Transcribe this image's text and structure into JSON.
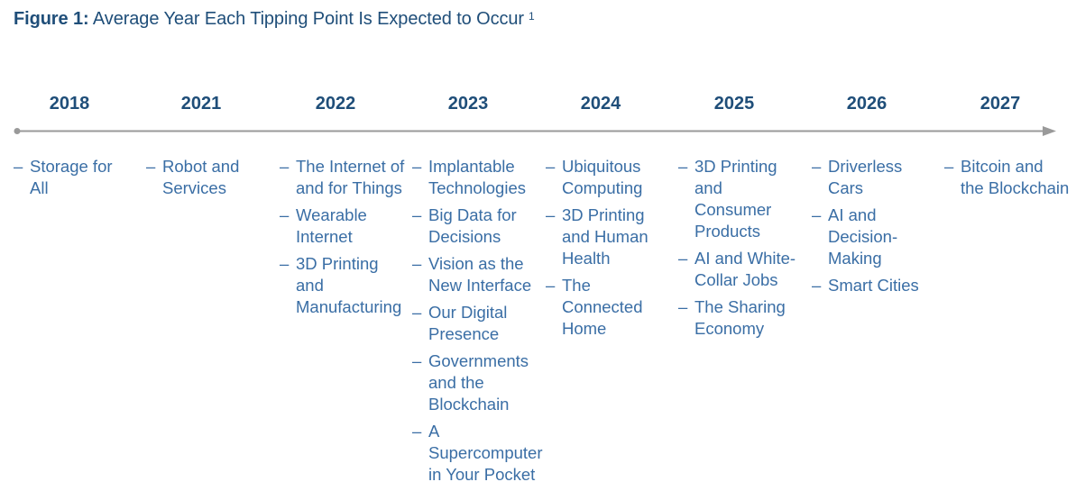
{
  "title": {
    "label": "Figure 1:",
    "text": "Average Year Each Tipping Point Is Expected to Occur",
    "footnote": "1"
  },
  "colors": {
    "title": "#1f4e79",
    "items": "#3a6ea5",
    "axis": "#9a9a9a"
  },
  "dash": "–",
  "columns": [
    {
      "year": "2018",
      "items": [
        "Storage for All"
      ]
    },
    {
      "year": "2021",
      "items": [
        "Robot and Services"
      ]
    },
    {
      "year": "2022",
      "items": [
        "The Internet of and for Things",
        "Wearable Internet",
        "3D Printing and Manufacturing"
      ]
    },
    {
      "year": "2023",
      "items": [
        "Implantable Technologies",
        "Big Data for Decisions",
        "Vision as the New Interface",
        "Our Digital Presence",
        "Governments and the Blockchain",
        "A Supercomputer in Your Pocket"
      ]
    },
    {
      "year": "2024",
      "items": [
        "Ubiquitous Computing",
        "3D Printing and Human Health",
        "The Connected Home"
      ]
    },
    {
      "year": "2025",
      "items": [
        "3D Printing and Consumer Products",
        "AI and White-Collar Jobs",
        "The Sharing Economy"
      ]
    },
    {
      "year": "2026",
      "items": [
        "Driverless Cars",
        "AI and Decision-Making",
        "Smart Cities"
      ]
    },
    {
      "year": "2027",
      "items": [
        "Bitcoin and the Blockchain"
      ]
    }
  ]
}
